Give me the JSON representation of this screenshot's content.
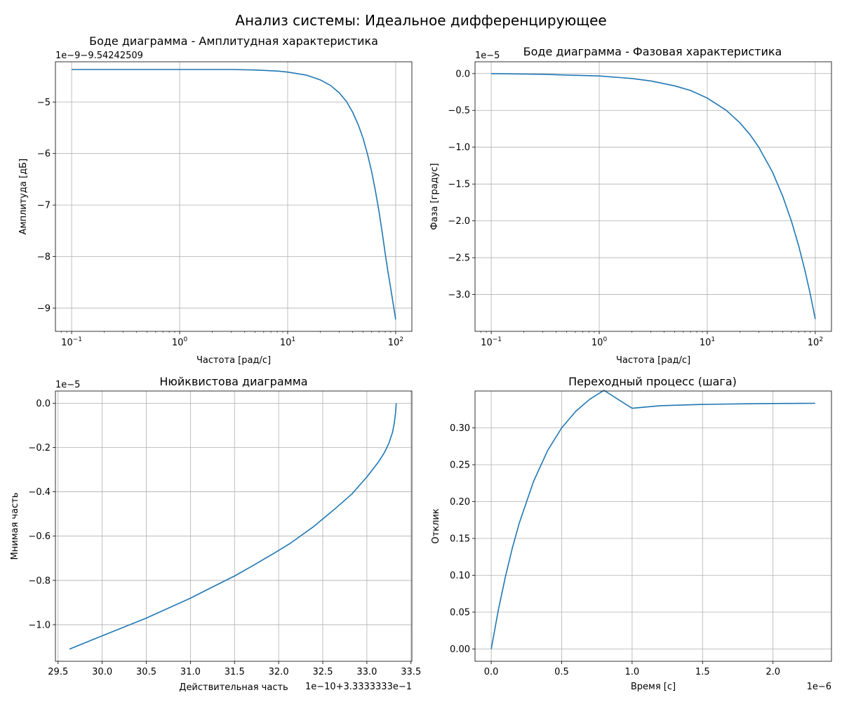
{
  "figure": {
    "title": "Анализ системы: Идеальное дифференцирующее"
  },
  "chart_data": [
    {
      "id": "bode_mag",
      "type": "line",
      "title": "Боде диаграмма - Амплитудная характеристика",
      "xlabel": "Частота [рад/с]",
      "ylabel": "Амплитуда [дБ]",
      "xscale": "log",
      "xlim": [
        0.07079,
        141.25
      ],
      "ylim": [
        -9.45,
        -4.22
      ],
      "y_offset_text": "1e−9−9.54242509",
      "x_ticks": [
        {
          "base": "10",
          "exp": "−1"
        },
        {
          "base": "10",
          "exp": "0"
        },
        {
          "base": "10",
          "exp": "1"
        },
        {
          "base": "10",
          "exp": "2"
        }
      ],
      "y_ticks": [
        "−5",
        "−6",
        "−7",
        "−8",
        "−9"
      ],
      "grid": true,
      "series": [
        {
          "color": "#1f77b4",
          "x": [
            0.1,
            1,
            3,
            5,
            8,
            10,
            15,
            20,
            25,
            30,
            35,
            40,
            45,
            50,
            55,
            60,
            65,
            70,
            75,
            80,
            85,
            90,
            95,
            100
          ],
          "y": [
            -4.37,
            -4.37,
            -4.37,
            -4.38,
            -4.4,
            -4.42,
            -4.48,
            -4.57,
            -4.68,
            -4.82,
            -4.99,
            -5.2,
            -5.44,
            -5.71,
            -6.02,
            -6.36,
            -6.73,
            -7.12,
            -7.53,
            -7.94,
            -8.3,
            -8.62,
            -8.93,
            -9.22
          ]
        }
      ]
    },
    {
      "id": "bode_phase",
      "type": "line",
      "title": "Боде диаграмма - Фазовая характеристика",
      "xlabel": "Частота [рад/с]",
      "ylabel": "Фаза [градус]",
      "xscale": "log",
      "xlim": [
        0.07079,
        141.25
      ],
      "ylim": [
        -3.5,
        0.16
      ],
      "y_offset_text": "1e−5",
      "x_ticks": [
        {
          "base": "10",
          "exp": "−1"
        },
        {
          "base": "10",
          "exp": "0"
        },
        {
          "base": "10",
          "exp": "1"
        },
        {
          "base": "10",
          "exp": "2"
        }
      ],
      "y_ticks": [
        "0.0",
        "−0.5",
        "−1.0",
        "−1.5",
        "−2.0",
        "−2.5",
        "−3.0"
      ],
      "grid": true,
      "series": [
        {
          "color": "#1f77b4",
          "x": [
            0.1,
            0.3,
            0.5,
            1,
            2,
            3,
            5,
            7,
            10,
            15,
            20,
            25,
            30,
            40,
            50,
            60,
            70,
            80,
            90,
            100
          ],
          "y": [
            0.0,
            -0.01,
            -0.02,
            -0.033,
            -0.067,
            -0.1,
            -0.167,
            -0.23,
            -0.333,
            -0.5,
            -0.667,
            -0.833,
            -1.0,
            -1.333,
            -1.667,
            -2.0,
            -2.333,
            -2.667,
            -3.0,
            -3.333
          ]
        }
      ]
    },
    {
      "id": "nyquist",
      "type": "line",
      "title": "Нюйквистова диаграмма",
      "xlabel": "Действительная часть",
      "ylabel": "Мнимая часть",
      "xscale": "linear",
      "xlim": [
        29.47,
        33.51
      ],
      "ylim": [
        -1.165,
        0.055
      ],
      "x_offset_text": "1e−10+3.3333333e−1",
      "y_offset_text": "1e−5",
      "x_ticks": [
        "29.5",
        "30.0",
        "30.5",
        "31.0",
        "31.5",
        "32.0",
        "32.5",
        "33.0",
        "33.5"
      ],
      "x_tick_values": [
        29.5,
        30.0,
        30.5,
        31.0,
        31.5,
        32.0,
        32.5,
        33.0,
        33.5
      ],
      "y_ticks": [
        "0.0",
        "−0.2",
        "−0.4",
        "−0.6",
        "−0.8",
        "−1.0"
      ],
      "y_tick_values": [
        0.0,
        -0.2,
        -0.4,
        -0.6,
        -0.8,
        -1.0
      ],
      "grid": true,
      "series": [
        {
          "color": "#1f77b4",
          "x": [
            29.63,
            30.0,
            30.5,
            31.0,
            31.2,
            31.5,
            31.7,
            32.0,
            32.13,
            32.4,
            32.63,
            32.83,
            33.0,
            33.13,
            33.2,
            33.25,
            33.29,
            33.31,
            33.325,
            33.333
          ],
          "y": [
            -1.11,
            -1.05,
            -0.97,
            -0.88,
            -0.84,
            -0.78,
            -0.735,
            -0.665,
            -0.633,
            -0.556,
            -0.48,
            -0.41,
            -0.333,
            -0.266,
            -0.222,
            -0.18,
            -0.133,
            -0.09,
            -0.045,
            0.0
          ]
        }
      ]
    },
    {
      "id": "step",
      "type": "line",
      "title": "Переходный процесс (шага)",
      "xlabel": "Время [с]",
      "ylabel": "Отклик",
      "xscale": "linear",
      "xlim": [
        -0.115,
        2.415
      ],
      "ylim": [
        -0.0167,
        0.35
      ],
      "x_offset_text": "1e−6",
      "x_ticks": [
        "0.0",
        "0.5",
        "1.0",
        "1.5",
        "2.0"
      ],
      "x_tick_values": [
        0.0,
        0.5,
        1.0,
        1.5,
        2.0
      ],
      "y_ticks": [
        "0.00",
        "0.05",
        "0.10",
        "0.15",
        "0.20",
        "0.25",
        "0.30"
      ],
      "y_tick_values": [
        0.0,
        0.05,
        0.1,
        0.15,
        0.2,
        0.25,
        0.3
      ],
      "grid": true,
      "series": [
        {
          "color": "#1f77b4",
          "x": [
            0.0,
            0.05,
            0.1,
            0.15,
            0.2,
            0.3,
            0.4,
            0.5,
            0.6,
            0.7,
            0.8,
            1.0,
            1.2,
            1.5,
            1.8,
            2.0,
            2.3
          ],
          "y": [
            0.0,
            0.0523,
            0.0977,
            0.137,
            0.1712,
            0.2271,
            0.2691,
            0.3,
            0.3225,
            0.3389,
            0.351,
            0.3266,
            0.3301,
            0.3318,
            0.3327,
            0.333,
            0.3333
          ]
        }
      ]
    }
  ]
}
